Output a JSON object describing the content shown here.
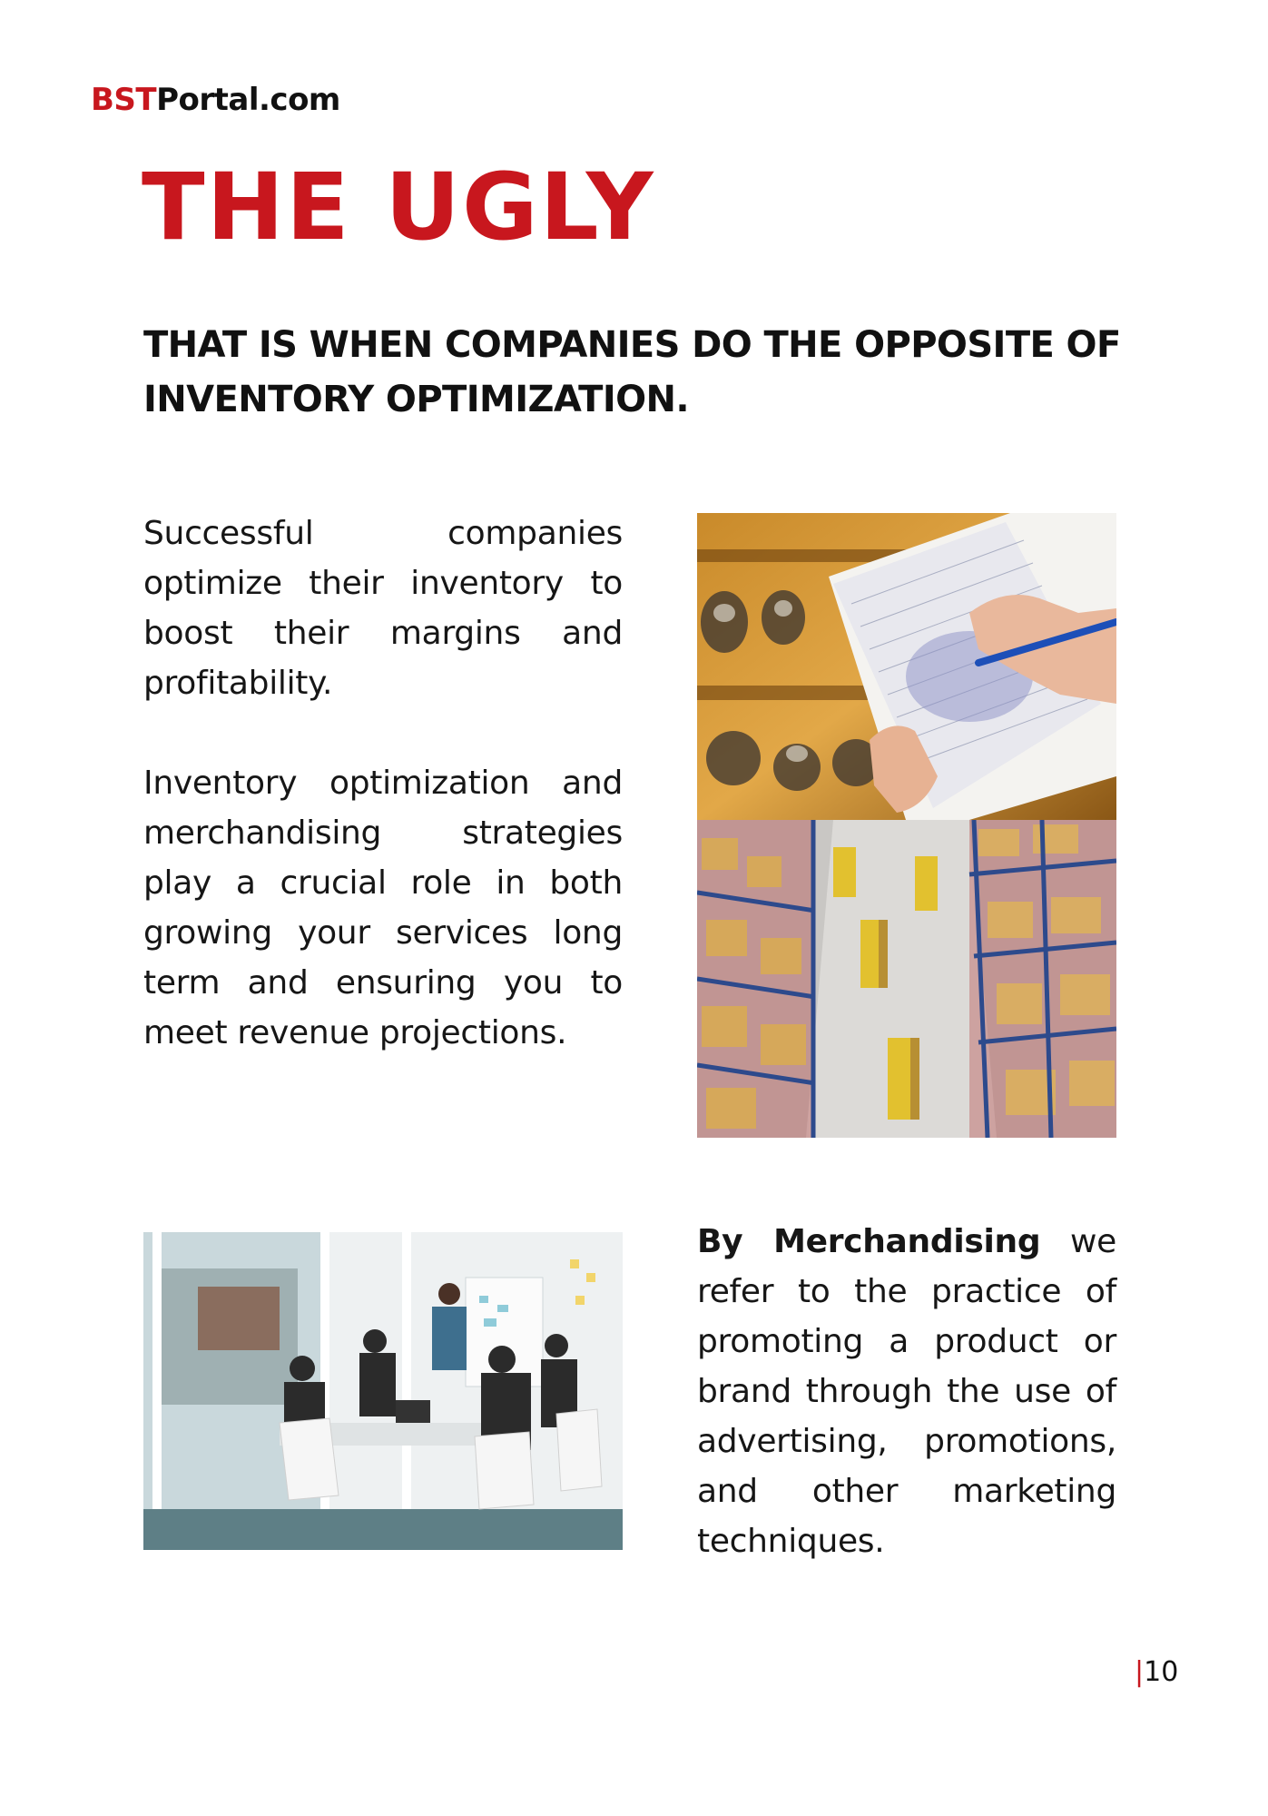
{
  "brand": {
    "part1": "BST",
    "part2": "Portal.com"
  },
  "title": "THE UGLY",
  "subtitle": "THAT IS WHEN COMPANIES DO THE OPPOSITE OF INVENTORY OPTIMIZATION.",
  "paragraphs": {
    "p1": "Successful companies optimize their inventory to boost their margins and profitability.",
    "p2": "Inventory optimization and merchandising strategies play a crucial role in both growing your services long term and ensuring you to meet revenue projections.",
    "p3_bold": "By Merchandising",
    "p3_rest": " we refer to the practice of promoting a product or brand through the use of advertising, promotions, and other marketing techniques."
  },
  "page_number": {
    "separator": "|",
    "number": "10"
  },
  "colors": {
    "accent": "#c8171e",
    "text": "#111111"
  }
}
